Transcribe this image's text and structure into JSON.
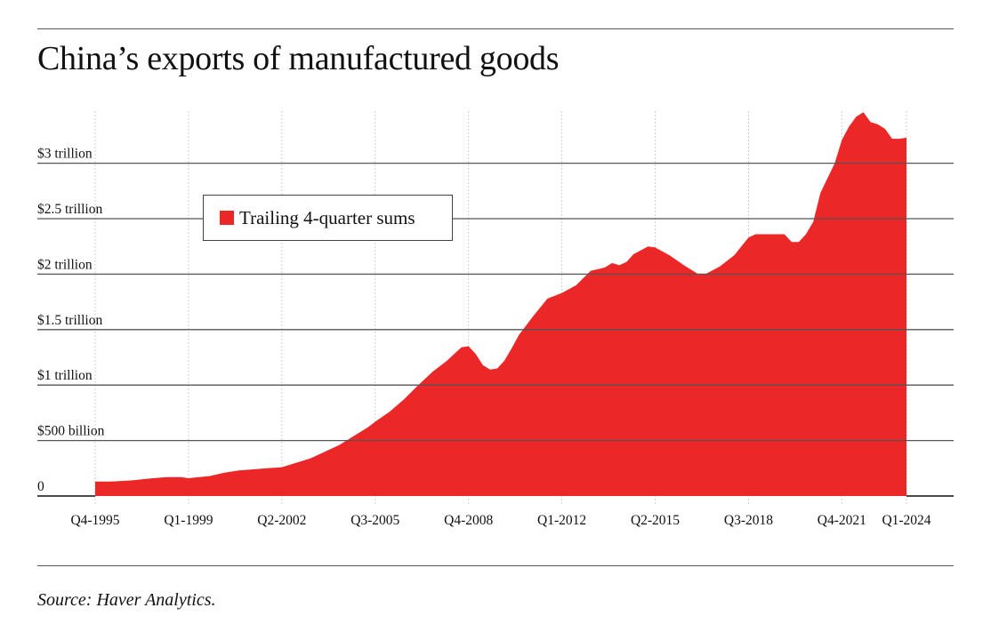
{
  "title": "China’s exports of manufactured goods",
  "source": "Source: Haver Analytics.",
  "colors": {
    "series": "#ec2727",
    "grid": "#cfcfcf",
    "rule": "#555555"
  },
  "chart_data": {
    "type": "area",
    "title": "China’s exports of manufactured goods",
    "xlabel": "",
    "ylabel": "",
    "legend": {
      "label": "Trailing 4-quarter sums",
      "placement": "top-left"
    },
    "x_ticks": [
      "Q4-1995",
      "Q1-1999",
      "Q2-2002",
      "Q3-2005",
      "Q4-2008",
      "Q1-2012",
      "Q2-2015",
      "Q3-2018",
      "Q4-2021",
      "Q1-2024"
    ],
    "y_ticks": [
      {
        "value": 0,
        "label": "0"
      },
      {
        "value": 0.5,
        "label": "$500 billion"
      },
      {
        "value": 1,
        "label": "$1 trillion"
      },
      {
        "value": 1.5,
        "label": "$1.5 trillion"
      },
      {
        "value": 2,
        "label": "$2 trillion"
      },
      {
        "value": 2.5,
        "label": "$2.5 trillion"
      },
      {
        "value": 3,
        "label": "$3 trillion"
      }
    ],
    "ylim": [
      0,
      3.5
    ],
    "units": "trillion USD",
    "grid": true,
    "series": [
      {
        "name": "Trailing 4-quarter sums",
        "points": [
          [
            "Q4-1995",
            0.13
          ],
          [
            "Q2-1996",
            0.13
          ],
          [
            "Q1-1997",
            0.14
          ],
          [
            "Q4-1997",
            0.16
          ],
          [
            "Q2-1998",
            0.17
          ],
          [
            "Q4-1998",
            0.17
          ],
          [
            "Q1-1999",
            0.16
          ],
          [
            "Q4-1999",
            0.18
          ],
          [
            "Q2-2000",
            0.21
          ],
          [
            "Q4-2000",
            0.23
          ],
          [
            "Q4-2001",
            0.25
          ],
          [
            "Q2-2002",
            0.26
          ],
          [
            "Q4-2002",
            0.3
          ],
          [
            "Q2-2003",
            0.34
          ],
          [
            "Q4-2003",
            0.4
          ],
          [
            "Q2-2004",
            0.46
          ],
          [
            "Q4-2004",
            0.54
          ],
          [
            "Q2-2005",
            0.62
          ],
          [
            "Q3-2005",
            0.67
          ],
          [
            "Q1-2006",
            0.76
          ],
          [
            "Q3-2006",
            0.87
          ],
          [
            "Q1-2007",
            1.0
          ],
          [
            "Q3-2007",
            1.12
          ],
          [
            "Q1-2008",
            1.22
          ],
          [
            "Q3-2008",
            1.34
          ],
          [
            "Q4-2008",
            1.35
          ],
          [
            "Q1-2009",
            1.28
          ],
          [
            "Q2-2009",
            1.18
          ],
          [
            "Q3-2009",
            1.14
          ],
          [
            "Q4-2009",
            1.15
          ],
          [
            "Q1-2010",
            1.22
          ],
          [
            "Q2-2010",
            1.33
          ],
          [
            "Q3-2010",
            1.45
          ],
          [
            "Q1-2011",
            1.62
          ],
          [
            "Q3-2011",
            1.78
          ],
          [
            "Q1-2012",
            1.83
          ],
          [
            "Q3-2012",
            1.9
          ],
          [
            "Q1-2013",
            2.03
          ],
          [
            "Q3-2013",
            2.06
          ],
          [
            "Q4-2013",
            2.1
          ],
          [
            "Q1-2014",
            2.08
          ],
          [
            "Q2-2014",
            2.11
          ],
          [
            "Q3-2014",
            2.18
          ],
          [
            "Q1-2015",
            2.25
          ],
          [
            "Q2-2015",
            2.24
          ],
          [
            "Q4-2015",
            2.17
          ],
          [
            "Q2-2016",
            2.08
          ],
          [
            "Q4-2016",
            2.0
          ],
          [
            "Q1-2017",
            2.0
          ],
          [
            "Q3-2017",
            2.07
          ],
          [
            "Q1-2018",
            2.17
          ],
          [
            "Q3-2018",
            2.33
          ],
          [
            "Q4-2018",
            2.36
          ],
          [
            "Q2-2019",
            2.36
          ],
          [
            "Q4-2019",
            2.36
          ],
          [
            "Q1-2020",
            2.29
          ],
          [
            "Q2-2020",
            2.29
          ],
          [
            "Q3-2020",
            2.36
          ],
          [
            "Q4-2020",
            2.47
          ],
          [
            "Q1-2021",
            2.73
          ],
          [
            "Q3-2021",
            3.0
          ],
          [
            "Q4-2021",
            3.21
          ],
          [
            "Q1-2022",
            3.33
          ],
          [
            "Q2-2022",
            3.42
          ],
          [
            "Q3-2022",
            3.46
          ],
          [
            "Q4-2022",
            3.37
          ],
          [
            "Q1-2023",
            3.35
          ],
          [
            "Q2-2023",
            3.31
          ],
          [
            "Q3-2023",
            3.22
          ],
          [
            "Q4-2023",
            3.22
          ],
          [
            "Q1-2024",
            3.23
          ]
        ]
      }
    ]
  }
}
